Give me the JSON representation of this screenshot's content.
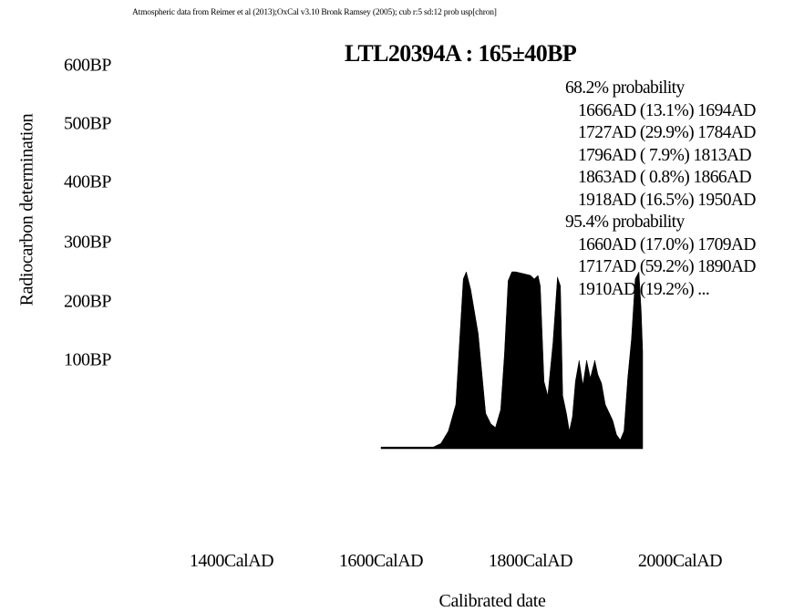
{
  "credit": "Atmospheric data from Reimer et al (2013);OxCal v3.10 Bronk Ramsey (2005); cub r:5 sd:12 prob usp[chron]",
  "chart_data": {
    "type": "area",
    "title": "LTL20394A : 165±40BP",
    "xlabel": "Calibrated date",
    "ylabel": "Radiocarbon determination",
    "x_ticks": [
      {
        "value": 1400,
        "label": "1400CalAD"
      },
      {
        "value": 1600,
        "label": "1600CalAD"
      },
      {
        "value": 1800,
        "label": "1800CalAD"
      },
      {
        "value": 2000,
        "label": "2000CalAD"
      }
    ],
    "y_ticks": [
      {
        "value": 100,
        "label": "100BP"
      },
      {
        "value": 200,
        "label": "200BP"
      },
      {
        "value": 300,
        "label": "300BP"
      },
      {
        "value": 400,
        "label": "400BP"
      },
      {
        "value": 500,
        "label": "500BP"
      },
      {
        "value": 600,
        "label": "600BP"
      }
    ],
    "xlim": [
      1400,
      2000
    ],
    "ylim": [
      0,
      600
    ],
    "probability_density": {
      "x": [
        1600,
        1650,
        1670,
        1680,
        1690,
        1700,
        1710,
        1714,
        1720,
        1730,
        1740,
        1747,
        1753,
        1760,
        1765,
        1770,
        1775,
        1780,
        1790,
        1800,
        1805,
        1810,
        1813,
        1818,
        1823,
        1830,
        1836,
        1840,
        1843,
        1848,
        1852,
        1856,
        1860,
        1865,
        1870,
        1875,
        1880,
        1886,
        1890,
        1895,
        1900,
        1910,
        1915,
        1920,
        1925,
        1930,
        1935,
        1940,
        1945,
        1948,
        1950
      ],
      "y": [
        0.01,
        0.01,
        0.01,
        0.03,
        0.1,
        0.25,
        0.96,
        1.0,
        0.9,
        0.65,
        0.2,
        0.14,
        0.12,
        0.22,
        0.53,
        0.95,
        1.0,
        1.0,
        0.99,
        0.98,
        0.96,
        0.98,
        0.92,
        0.38,
        0.3,
        0.6,
        0.97,
        0.92,
        0.3,
        0.2,
        0.1,
        0.18,
        0.38,
        0.5,
        0.36,
        0.5,
        0.4,
        0.5,
        0.42,
        0.37,
        0.25,
        0.16,
        0.08,
        0.05,
        0.1,
        0.4,
        0.62,
        0.96,
        1.0,
        0.78,
        0.55
      ]
    },
    "ranges": [
      {
        "label": "68.2% probability",
        "rows": [
          "1666AD (13.1%) 1694AD",
          "1727AD (29.9%) 1784AD",
          "1796AD ( 7.9%) 1813AD",
          "1863AD ( 0.8%) 1866AD",
          "1918AD (16.5%) 1950AD"
        ]
      },
      {
        "label": "95.4% probability",
        "rows": [
          "1660AD (17.0%) 1709AD",
          "1717AD (59.2%) 1890AD",
          "1910AD (19.2%) ..."
        ]
      }
    ],
    "fill_color": "#000000"
  }
}
